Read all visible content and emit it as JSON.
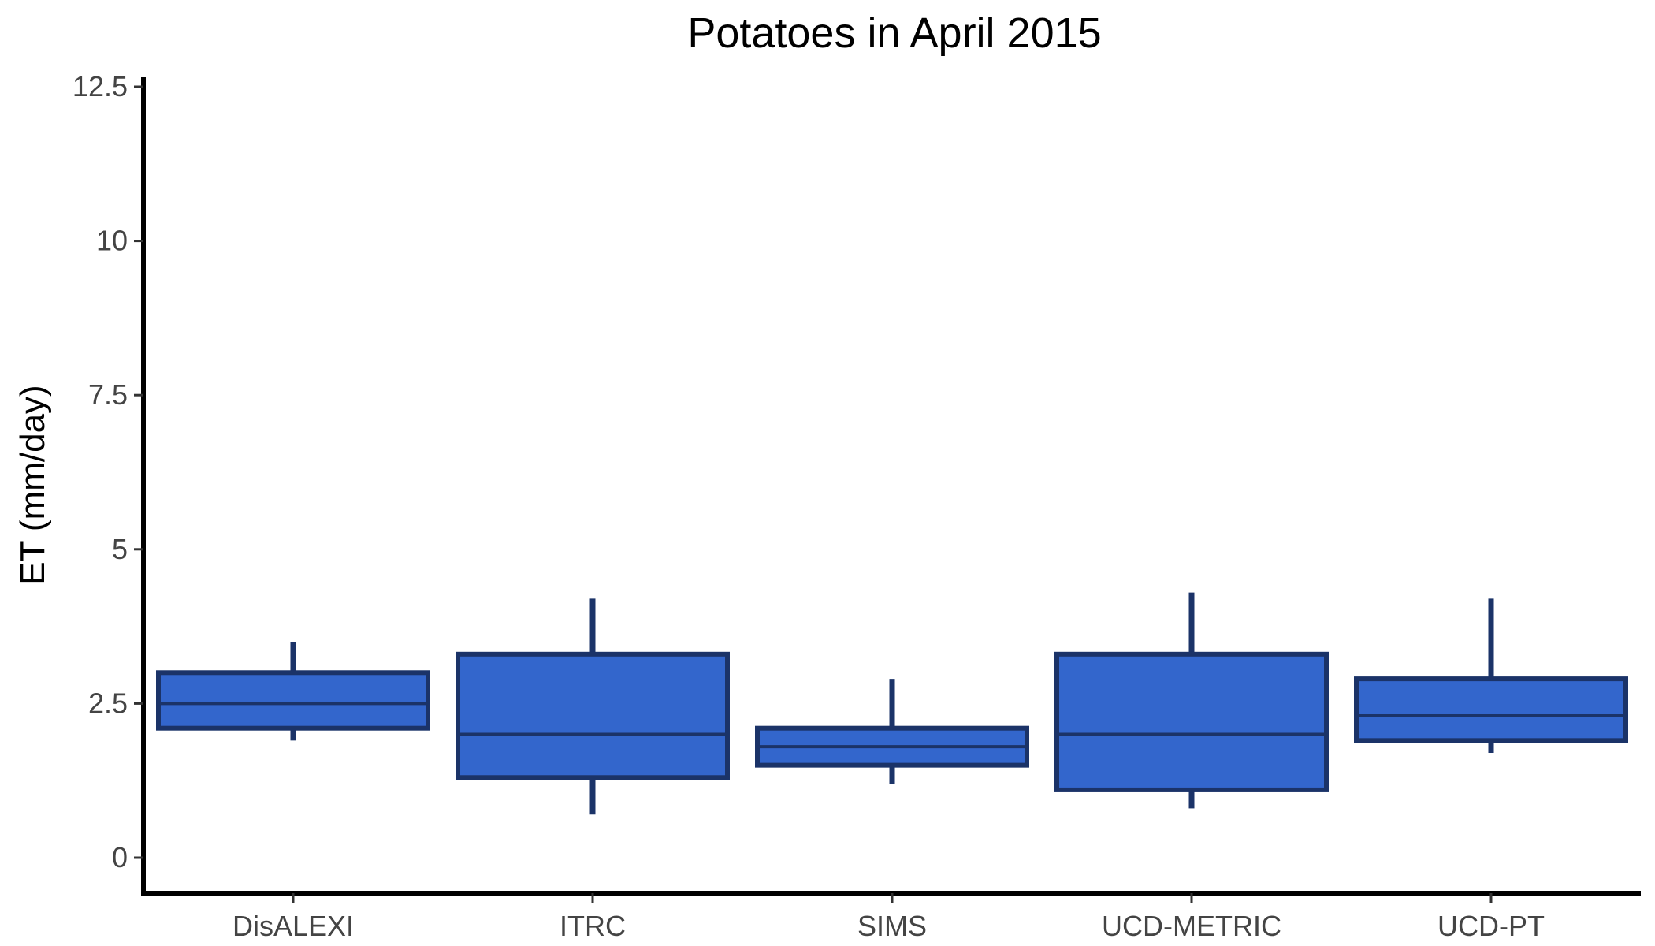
{
  "chart_data": {
    "type": "box",
    "title": "Potatoes in April 2015",
    "xlabel": "",
    "ylabel": "ET (mm/day)",
    "ylim": [
      -0.6,
      12.6
    ],
    "yticks": [
      0,
      2.5,
      5,
      7.5,
      10,
      12.5
    ],
    "ytick_labels": [
      "0",
      "2.5",
      "5",
      "7.5",
      "10",
      "12.5"
    ],
    "categories": [
      "DisALEXI",
      "ITRC",
      "SIMS",
      "UCD-METRIC",
      "UCD-PT"
    ],
    "boxes": [
      {
        "category": "DisALEXI",
        "whisker_low": 1.9,
        "q1": 2.1,
        "median": 2.5,
        "q3": 3.0,
        "whisker_high": 3.5
      },
      {
        "category": "ITRC",
        "whisker_low": 0.7,
        "q1": 1.3,
        "median": 2.0,
        "q3": 3.3,
        "whisker_high": 4.2
      },
      {
        "category": "SIMS",
        "whisker_low": 1.2,
        "q1": 1.5,
        "median": 1.8,
        "q3": 2.1,
        "whisker_high": 2.9
      },
      {
        "category": "UCD-METRIC",
        "whisker_low": 0.8,
        "q1": 1.1,
        "median": 2.0,
        "q3": 3.3,
        "whisker_high": 4.3
      },
      {
        "category": "UCD-PT",
        "whisker_low": 1.7,
        "q1": 1.9,
        "median": 2.3,
        "q3": 2.9,
        "whisker_high": 4.2
      }
    ],
    "grid": false,
    "legend": "none",
    "colors": {
      "box_fill": "#3366CC",
      "box_stroke": "#1B3368",
      "axis": "#000000"
    }
  }
}
